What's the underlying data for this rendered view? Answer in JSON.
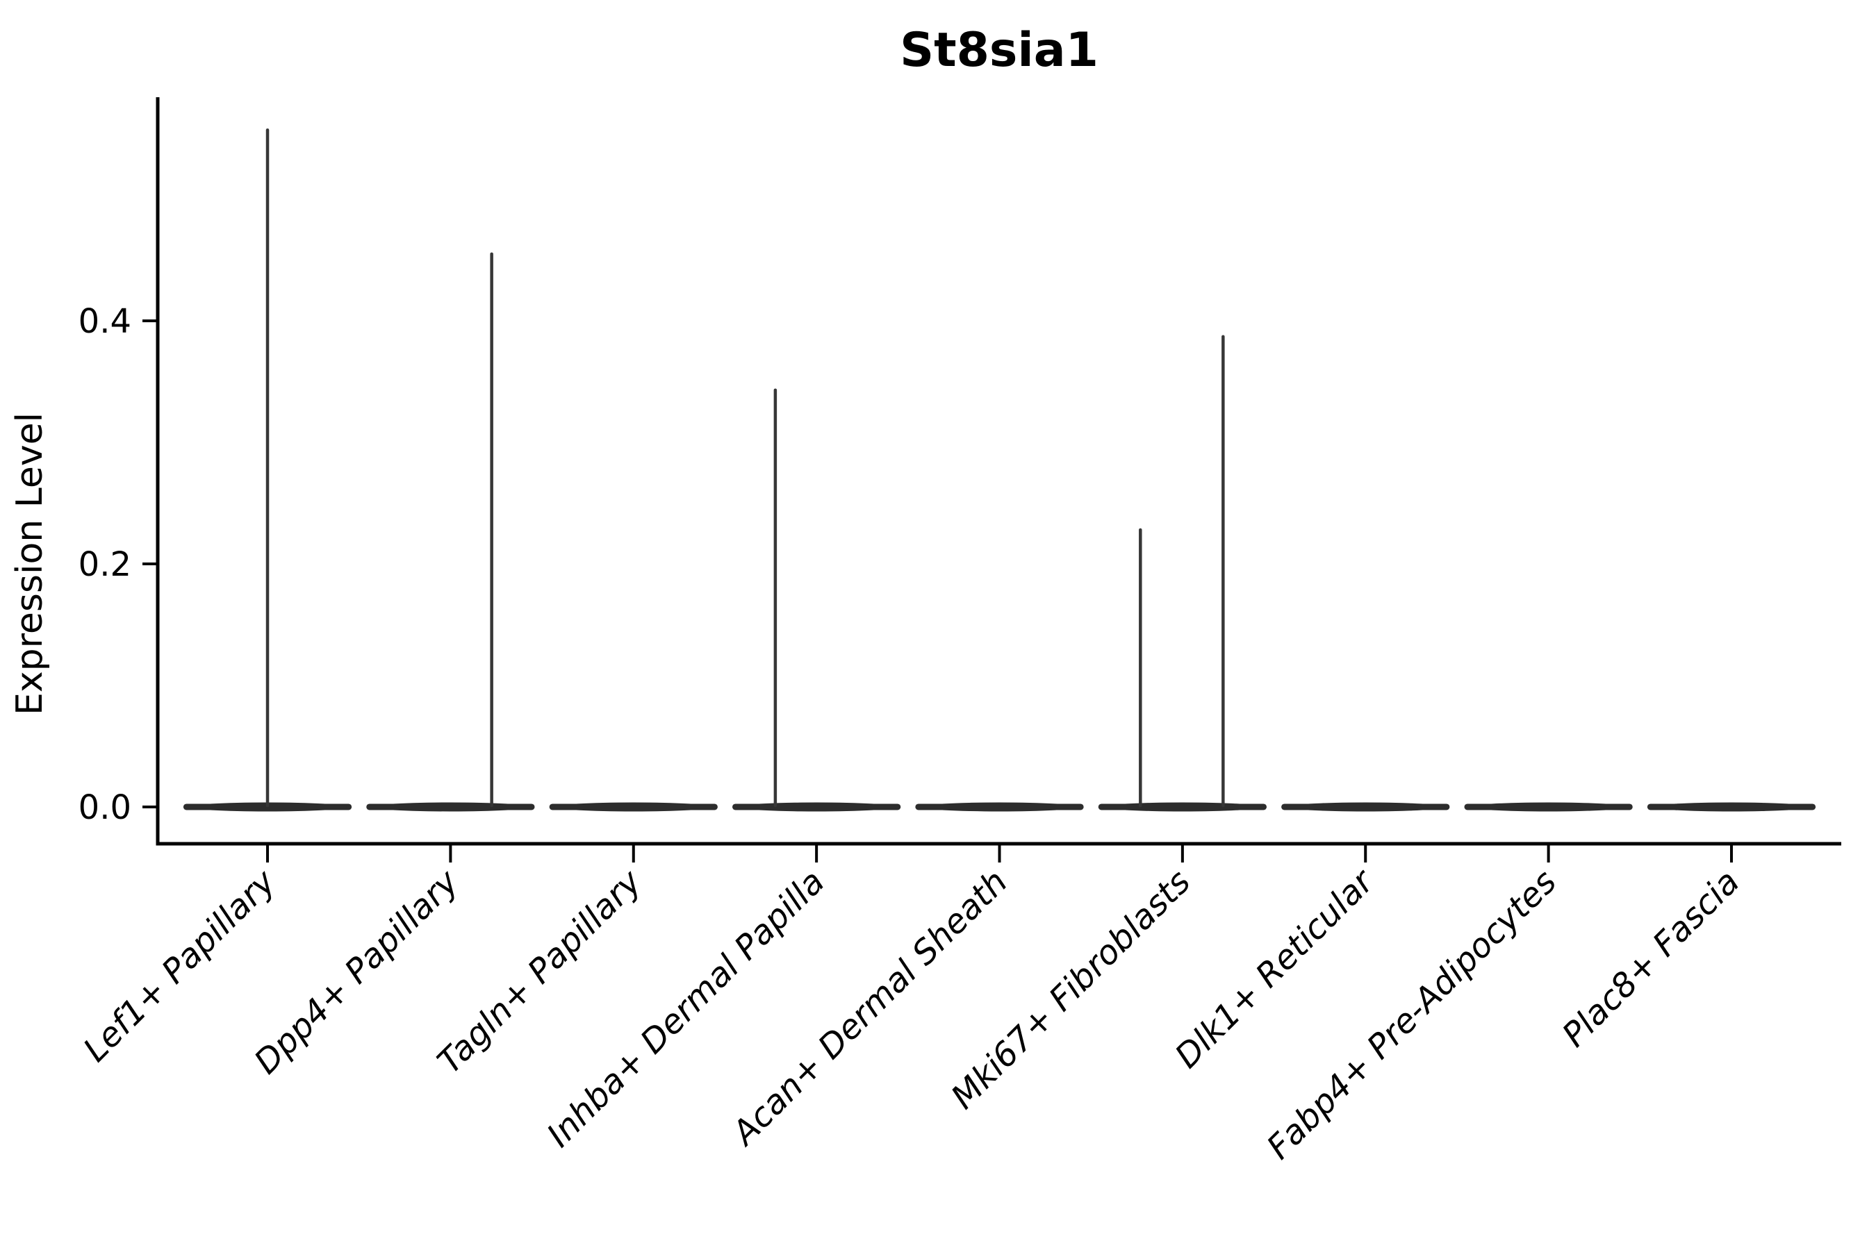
{
  "figure": {
    "background_color": "#ffffff",
    "axis_color": "#000000",
    "violin_fill_color": "#2d2d2d",
    "spike_color": "#373737",
    "text_color": "#000000"
  },
  "chart_data": {
    "type": "violin",
    "title": "St8sia1",
    "xlabel": "",
    "ylabel": "Expression Level",
    "yticks": [
      0.0,
      0.2,
      0.4
    ],
    "ytick_labels": [
      "0.0",
      "0.2",
      "0.4"
    ],
    "ylim": [
      -0.0303,
      0.584
    ],
    "grid": false,
    "legend_position": "none",
    "x_tick_label_rotation_deg": -45,
    "x_tick_label_style": "italic",
    "categories": [
      "Lef1+ Papillary",
      "Dpp4+ Papillary",
      "Tagln+ Papillary",
      "Inhba+ Dermal Papilla",
      "Acan+ Dermal Sheath",
      "Mki67+ Fibroblasts",
      "Dlk1+ Reticular",
      "Fabp4+ Pre-Adipocytes",
      "Plac8+ Fascia"
    ],
    "violins": [
      {
        "category": "Lef1+ Papillary",
        "body_value": 0.0,
        "spikes": [
          {
            "value": 0.557,
            "offset_frac": 0.0
          }
        ]
      },
      {
        "category": "Dpp4+ Papillary",
        "body_value": 0.0,
        "spikes": [
          {
            "value": 0.455,
            "offset_frac": 0.225
          }
        ]
      },
      {
        "category": "Tagln+ Papillary",
        "body_value": 0.0,
        "spikes": []
      },
      {
        "category": "Inhba+ Dermal Papilla",
        "body_value": 0.0,
        "spikes": [
          {
            "value": 0.343,
            "offset_frac": -0.225
          }
        ]
      },
      {
        "category": "Acan+ Dermal Sheath",
        "body_value": 0.0,
        "spikes": []
      },
      {
        "category": "Mki67+ Fibroblasts",
        "body_value": 0.0,
        "spikes": [
          {
            "value": 0.228,
            "offset_frac": -0.23
          },
          {
            "value": 0.387,
            "offset_frac": 0.222
          }
        ]
      },
      {
        "category": "Dlk1+ Reticular",
        "body_value": 0.0,
        "spikes": []
      },
      {
        "category": "Fabp4+ Pre-Adipocytes",
        "body_value": 0.0,
        "spikes": []
      },
      {
        "category": "Plac8+ Fascia",
        "body_value": 0.0,
        "spikes": []
      }
    ]
  }
}
